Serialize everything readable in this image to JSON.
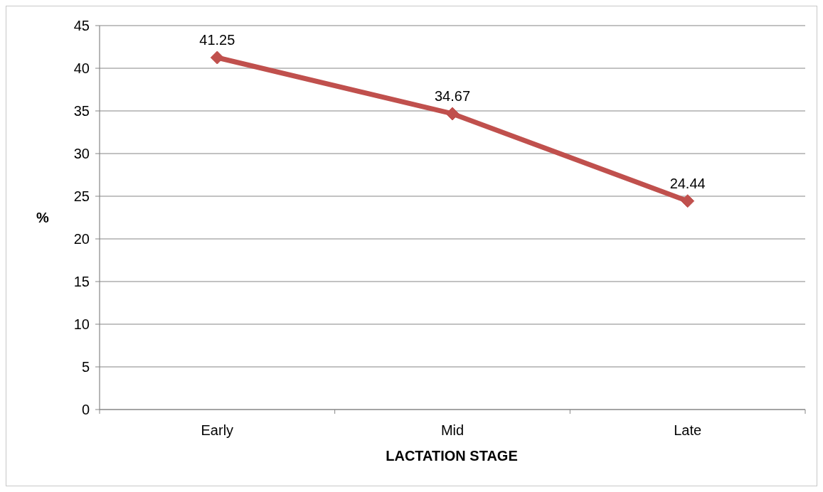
{
  "chart_data": {
    "type": "line",
    "xlabel": "LACTATION STAGE",
    "ylabel": "%",
    "categories": [
      "Early",
      "Mid",
      "Late"
    ],
    "series": [
      {
        "color": "#c0504d",
        "values": [
          41.25,
          34.67,
          24.44
        ]
      }
    ],
    "ylim": [
      0,
      45
    ],
    "yticks": [
      0,
      5,
      10,
      15,
      20,
      25,
      30,
      35,
      40,
      45
    ],
    "grid": "y",
    "marker": "diamond",
    "data_labels": true
  }
}
